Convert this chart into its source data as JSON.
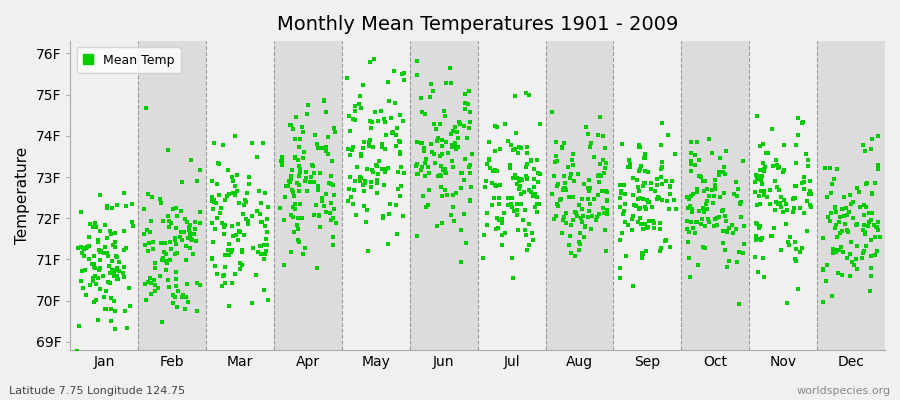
{
  "title": "Monthly Mean Temperatures 1901 - 2009",
  "ylabel": "Temperature",
  "xlabel_bottom_left": "Latitude 7.75 Longitude 124.75",
  "xlabel_bottom_right": "worldspecies.org",
  "legend_label": "Mean Temp",
  "dot_color": "#00cc00",
  "background_color": "#f0f0f0",
  "band_color_light": "#f0f0f0",
  "band_color_dark": "#dcdcdc",
  "ylim": [
    68.8,
    76.3
  ],
  "yticks": [
    69,
    70,
    71,
    72,
    73,
    74,
    75,
    76
  ],
  "ytick_labels": [
    "69F",
    "70F",
    "71F",
    "72F",
    "73F",
    "74F",
    "75F",
    "76F"
  ],
  "months": [
    "Jan",
    "Feb",
    "Mar",
    "Apr",
    "May",
    "Jun",
    "Jul",
    "Aug",
    "Sep",
    "Oct",
    "Nov",
    "Dec"
  ],
  "n_years": 109,
  "seed": 42,
  "month_means": [
    71.0,
    71.2,
    71.8,
    72.8,
    73.8,
    73.5,
    72.8,
    72.5,
    72.3,
    72.2,
    72.4,
    71.8
  ],
  "month_stds": [
    0.85,
    0.9,
    0.95,
    0.95,
    1.05,
    0.95,
    0.85,
    0.85,
    0.8,
    0.8,
    0.85,
    0.85
  ],
  "jitter_seed": 123
}
